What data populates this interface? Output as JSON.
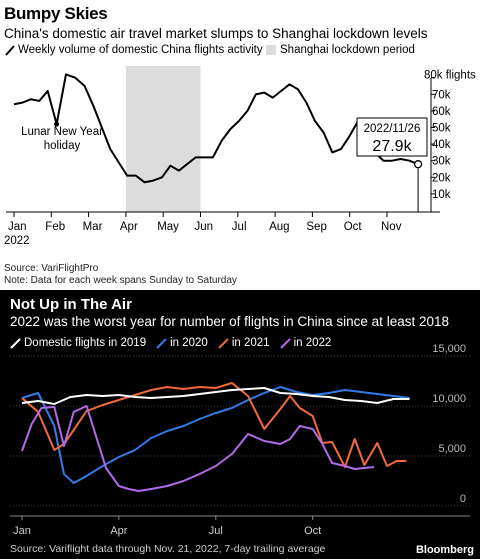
{
  "top": {
    "title": "Bumpy Skies",
    "subtitle": "China's domestic air travel market slumps to Shanghai lockdown levels",
    "legend_series": "Weekly volume of domestic China flights activity",
    "legend_shade": "Shanghai lockdown period",
    "annotation": "Lunar New Year holiday",
    "annotation_line1": "Lunar New Year",
    "annotation_line2": "holiday",
    "callout_date": "2022/11/26",
    "callout_value": "27.9k",
    "y_ticks": [
      "10k",
      "20k",
      "30k",
      "40k",
      "50k",
      "60k",
      "70k",
      "80k flights"
    ],
    "x_ticks": [
      "Jan",
      "Feb",
      "Mar",
      "Apr",
      "May",
      "Jun",
      "Jul",
      "Aug",
      "Sep",
      "Oct",
      "Nov"
    ],
    "x_year": "2022",
    "source": "Source: VariFlightPro",
    "note": "Note: Data for each week spans Sunday to Saturday"
  },
  "bottom": {
    "title": "Not Up in The Air",
    "subtitle": "2022 was the worst year for number of flights in China since at least 2018",
    "legend": [
      "Domestic flights in 2019",
      "in 2020",
      "in 2021",
      "in 2022"
    ],
    "y_ticks": [
      "0",
      "5,000",
      "10,000",
      "15,000"
    ],
    "x_ticks": [
      "Jan",
      "Apr",
      "Jul",
      "Oct"
    ],
    "source": "Source: Variflight data through Nov. 21, 2022, 7-day trailing average",
    "brand": "Bloomberg"
  },
  "colors": {
    "series_2019": "#ffffff",
    "series_2020": "#2f7be8",
    "series_2021": "#f26a3a",
    "series_2022": "#b26be8",
    "shade": "#dcdcdc",
    "weekly_line": "#000000"
  },
  "chart_data": [
    {
      "type": "line",
      "title": "Bumpy Skies",
      "subtitle": "China's domestic air travel market slumps to Shanghai lockdown levels",
      "ylabel": "flights",
      "ylim": [
        0,
        85
      ],
      "y_unit": "thousand flights",
      "xlim_month": [
        0,
        11.6
      ],
      "shaded_region": {
        "label": "Shanghai lockdown period",
        "from": "2022-04-01",
        "to": "2022-06-01"
      },
      "series": [
        {
          "name": "Weekly volume of domestic China flights activity",
          "x": [
            "2022-01-01",
            "2022-01-08",
            "2022-01-15",
            "2022-01-22",
            "2022-01-29",
            "2022-02-05",
            "2022-02-12",
            "2022-02-19",
            "2022-02-26",
            "2022-03-05",
            "2022-03-12",
            "2022-03-19",
            "2022-03-26",
            "2022-04-02",
            "2022-04-09",
            "2022-04-16",
            "2022-04-23",
            "2022-04-30",
            "2022-05-07",
            "2022-05-14",
            "2022-05-21",
            "2022-05-28",
            "2022-06-04",
            "2022-06-11",
            "2022-06-18",
            "2022-06-25",
            "2022-07-02",
            "2022-07-09",
            "2022-07-16",
            "2022-07-23",
            "2022-07-30",
            "2022-08-06",
            "2022-08-13",
            "2022-08-20",
            "2022-08-27",
            "2022-09-03",
            "2022-09-10",
            "2022-09-17",
            "2022-09-24",
            "2022-10-01",
            "2022-10-08",
            "2022-10-15",
            "2022-10-22",
            "2022-10-29",
            "2022-11-05",
            "2022-11-12",
            "2022-11-19",
            "2022-11-26"
          ],
          "values": [
            64,
            65,
            67,
            66,
            72,
            52,
            82,
            80,
            75,
            63,
            50,
            37,
            29,
            21,
            21,
            17,
            18,
            20,
            27,
            24,
            28,
            32,
            32,
            32,
            42,
            49,
            54,
            60,
            70,
            71,
            68,
            72,
            76,
            73,
            65,
            54,
            47,
            35,
            37,
            45,
            54,
            48,
            35,
            30,
            30,
            31,
            30,
            27.9
          ]
        }
      ],
      "annotations": [
        {
          "text": "Lunar New Year holiday",
          "x": "2022-02-05"
        },
        {
          "text": "2022/11/26 27.9k",
          "x": "2022-11-26",
          "y": 27.9
        }
      ]
    },
    {
      "type": "line",
      "title": "Not Up in The Air",
      "subtitle": "2022 was the worst year for number of flights in China since at least 2018",
      "ylim": [
        0,
        15000
      ],
      "x_ticks": [
        "Jan",
        "Apr",
        "Jul",
        "Oct"
      ],
      "xlim_month": [
        0,
        12
      ],
      "series": [
        {
          "name": "Domestic flights in 2019",
          "x": [
            0,
            0.5,
            1,
            1.5,
            2,
            2.5,
            3,
            3.5,
            4,
            4.5,
            5,
            5.5,
            6,
            6.5,
            7,
            7.5,
            8,
            8.5,
            9,
            9.5,
            10,
            10.5,
            11,
            11.5,
            12
          ],
          "values": [
            10300,
            10500,
            10200,
            10900,
            11100,
            11000,
            11100,
            10900,
            10800,
            10900,
            11000,
            11200,
            11400,
            11600,
            11700,
            11800,
            11300,
            11200,
            11000,
            10900,
            10600,
            10500,
            10300,
            10700,
            10700
          ]
        },
        {
          "name": "in 2020",
          "x": [
            0,
            0.5,
            1,
            1.3,
            1.6,
            2,
            2.5,
            3,
            3.5,
            4,
            4.5,
            5,
            5.5,
            6,
            6.5,
            7,
            7.5,
            8,
            8.5,
            9,
            9.5,
            10,
            10.5,
            11,
            11.5,
            12
          ],
          "values": [
            10800,
            11300,
            8000,
            3200,
            2300,
            3000,
            4000,
            4900,
            5600,
            6800,
            7500,
            8000,
            8700,
            9300,
            9800,
            10600,
            11300,
            11900,
            11400,
            11100,
            11300,
            11600,
            11400,
            11200,
            11000,
            10800
          ]
        },
        {
          "name": "in 2021",
          "x": [
            0,
            0.5,
            1,
            1.3,
            1.6,
            2,
            2.5,
            3,
            3.5,
            4,
            4.5,
            5,
            5.5,
            6,
            6.5,
            7,
            7.5,
            8,
            8.3,
            8.6,
            9,
            9.3,
            9.6,
            10,
            10.3,
            10.6,
            11,
            11.3,
            11.6,
            11.9
          ],
          "values": [
            10800,
            9400,
            5600,
            6200,
            7600,
            9500,
            10100,
            10600,
            11100,
            11600,
            11900,
            11700,
            11900,
            11800,
            12300,
            11000,
            7700,
            9700,
            11000,
            9800,
            9000,
            6300,
            6400,
            3900,
            6700,
            4100,
            6300,
            4000,
            4500,
            4500
          ]
        },
        {
          "name": "in 2022",
          "x": [
            0,
            0.3,
            0.6,
            1,
            1.3,
            1.6,
            2,
            2.3,
            2.6,
            3,
            3.3,
            3.6,
            4,
            4.5,
            5,
            5.5,
            6,
            6.5,
            7,
            7.5,
            8,
            8.3,
            8.6,
            9,
            9.3,
            9.6,
            10,
            10.3,
            10.6,
            10.9
          ],
          "values": [
            5500,
            8200,
            9800,
            9900,
            6000,
            9400,
            10000,
            6900,
            3800,
            2000,
            1700,
            1500,
            1700,
            2000,
            2500,
            3200,
            4000,
            5200,
            7200,
            6500,
            6200,
            6700,
            8000,
            7700,
            6200,
            4300,
            4000,
            3700,
            3800,
            3900
          ]
        }
      ]
    }
  ]
}
